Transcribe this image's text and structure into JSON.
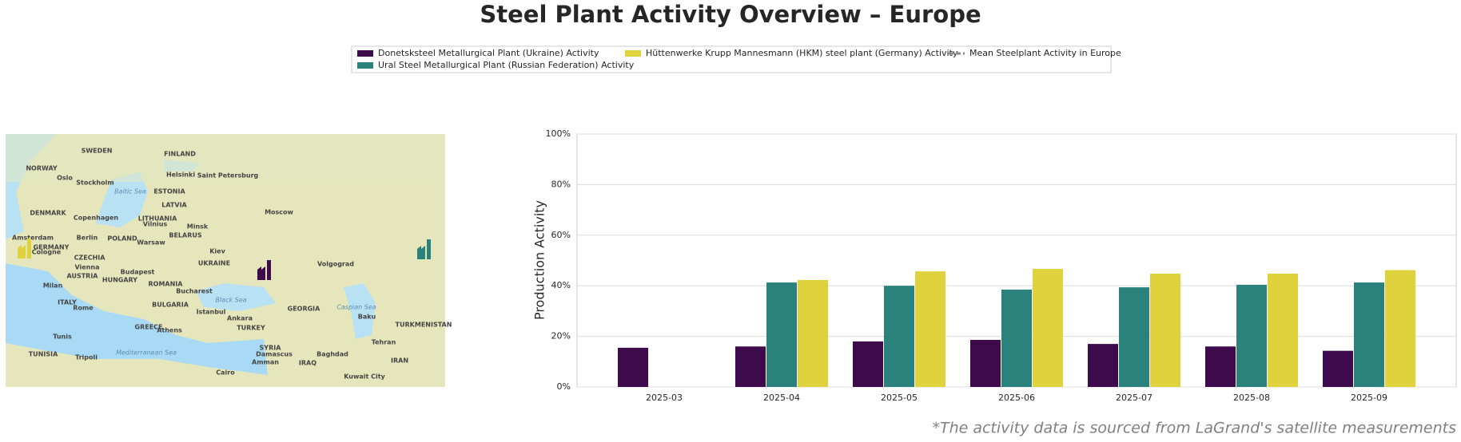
{
  "chart_data": {
    "type": "bar",
    "title": "Steel Plant Activity Overview – Europe",
    "ylabel": "Production Activity",
    "footnote": "*The activity data is sourced from LaGrand's satellite measurements",
    "categories": [
      "2025-03",
      "2025-04",
      "2025-05",
      "2025-06",
      "2025-07",
      "2025-08",
      "2025-09"
    ],
    "series": [
      {
        "name": "Donetsksteel Metallurgical Plant (Ukraine) Activity",
        "color": "#3d0b4b",
        "values": [
          15.5,
          16,
          18,
          18.6,
          17,
          16,
          14.3
        ]
      },
      {
        "name": "Ural Steel Metallurgical Plant (Russian Federation) Activity",
        "color": "#2b827c",
        "values": [
          null,
          41.3,
          40,
          38.5,
          39.4,
          40.4,
          41.3
        ]
      },
      {
        "name": "Hüttenwerke Krupp Mannesmann (HKM) steel plant (Germany) Activity",
        "color": "#e0d23c",
        "values": [
          null,
          42.3,
          45.7,
          46.7,
          44.8,
          44.8,
          46.2
        ]
      },
      {
        "name": "Mean Steelplant Activity in Europe",
        "color": "#888888",
        "line_style": "dashed",
        "values": [
          null,
          null,
          null,
          null,
          null,
          null,
          null
        ]
      }
    ],
    "ylim": [
      0,
      100
    ],
    "yticks": [
      {
        "value": 0,
        "label": "0%"
      },
      {
        "value": 20,
        "label": "20%"
      },
      {
        "value": 40,
        "label": "40%"
      },
      {
        "value": 60,
        "label": "60%"
      },
      {
        "value": 80,
        "label": "80%"
      },
      {
        "value": 100,
        "label": "100%"
      }
    ],
    "grid": true,
    "legend": "top"
  },
  "map": {
    "labels": [
      "SWEDEN",
      "FINLAND",
      "NORWAY",
      "Oslo",
      "Stockholm",
      "Helsinki",
      "Saint Petersburg",
      "ESTONIA",
      "Baltic Sea",
      "LATVIA",
      "DENMARK",
      "Copenhagen",
      "LITHUANIA",
      "Vilnius",
      "Moscow",
      "Minsk",
      "BELARUS",
      "Amsterdam",
      "Berlin",
      "POLAND",
      "Warsaw",
      "GERMANY",
      "Cologne",
      "Kiev",
      "UKRAINE",
      "CZECHIA",
      "Vienna",
      "AUSTRIA",
      "Budapest",
      "HUNGARY",
      "ROMANIA",
      "Volgograd",
      "Milan",
      "Bucharest",
      "ITALY",
      "Rome",
      "BULGARIA",
      "Black Sea",
      "Istanbul",
      "GEORGIA",
      "Caspian Sea",
      "Baku",
      "Ankara",
      "GREECE",
      "Athens",
      "TURKEY",
      "TURKMENISTAN",
      "Tunis",
      "Tehran",
      "TUNISIA",
      "Tripoli",
      "SYRIA",
      "Damascus",
      "Baghdad",
      "Amman",
      "IRAQ",
      "IRAN",
      "Mediterranean Sea",
      "Cairo",
      "Kuwait City"
    ]
  }
}
